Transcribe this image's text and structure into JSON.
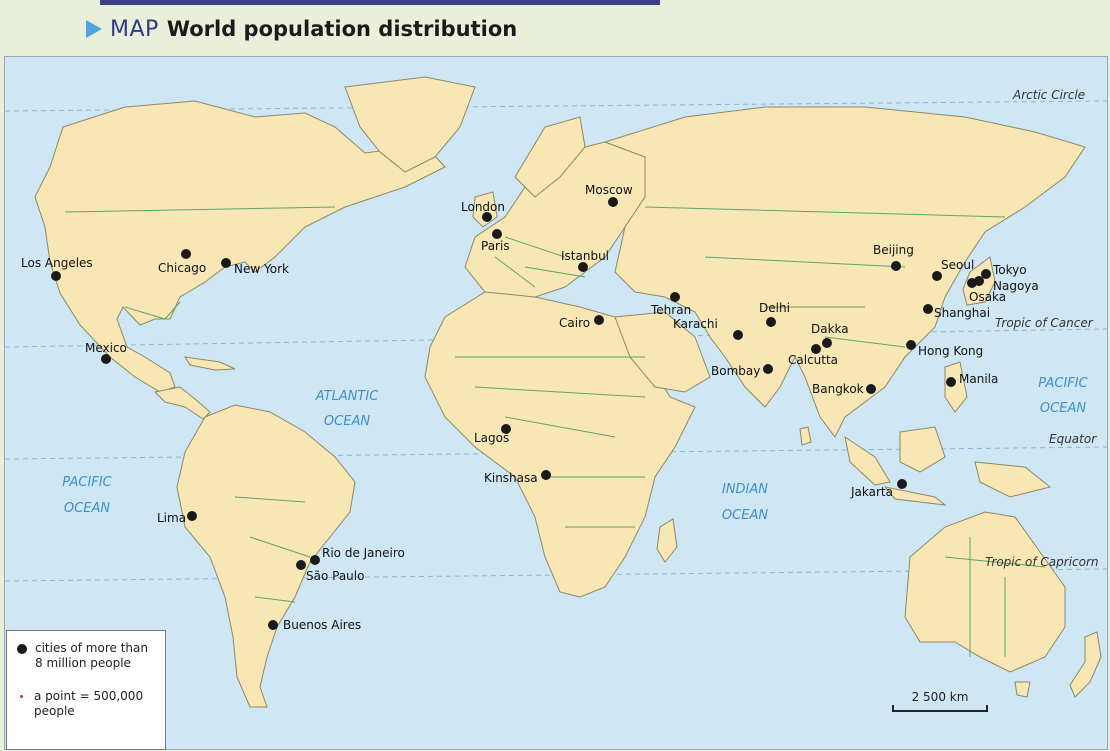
{
  "header": {
    "kicker": "MAP",
    "title": "World population distribution"
  },
  "colors": {
    "ocean": "#cfe6f5",
    "land": "#f8e6b4",
    "border": "#3f9a5a",
    "density": "#e02a2a",
    "city": "#1a1a1a"
  },
  "lines": [
    {
      "id": "arctic-circle",
      "label": "Arctic Circle"
    },
    {
      "id": "tropic-of-cancer",
      "label": "Tropic of Cancer"
    },
    {
      "id": "equator",
      "label": "Equator"
    },
    {
      "id": "tropic-of-capricorn",
      "label": "Tropic of Capricorn"
    }
  ],
  "oceans": [
    {
      "id": "atlantic",
      "lines": [
        "ATLANTIC",
        "OCEAN"
      ]
    },
    {
      "id": "pacific-west",
      "lines": [
        "PACIFIC",
        "OCEAN"
      ]
    },
    {
      "id": "pacific-east",
      "lines": [
        "PACIFIC",
        "OCEAN"
      ]
    },
    {
      "id": "indian",
      "lines": [
        "INDIAN",
        "OCEAN"
      ]
    }
  ],
  "cities": [
    "Los Angeles",
    "Chicago",
    "New York",
    "Mexico",
    "Lima",
    "Rio de Janeiro",
    "São Paulo",
    "Buenos Aires",
    "London",
    "Paris",
    "Moscow",
    "Istanbul",
    "Cairo",
    "Tehran",
    "Lagos",
    "Kinshasa",
    "Karachi",
    "Delhi",
    "Dakka",
    "Calcutta",
    "Bombay",
    "Beijing",
    "Seoul",
    "Tokyo",
    "Nagoya",
    "Osaka",
    "Shanghai",
    "Hong Kong",
    "Bangkok",
    "Manila",
    "Jakarta"
  ],
  "legend": {
    "cities_label": "cities of more than 8 million people",
    "point_label": "a point = 500,000 people"
  },
  "scale": {
    "label": "2 500 km"
  }
}
